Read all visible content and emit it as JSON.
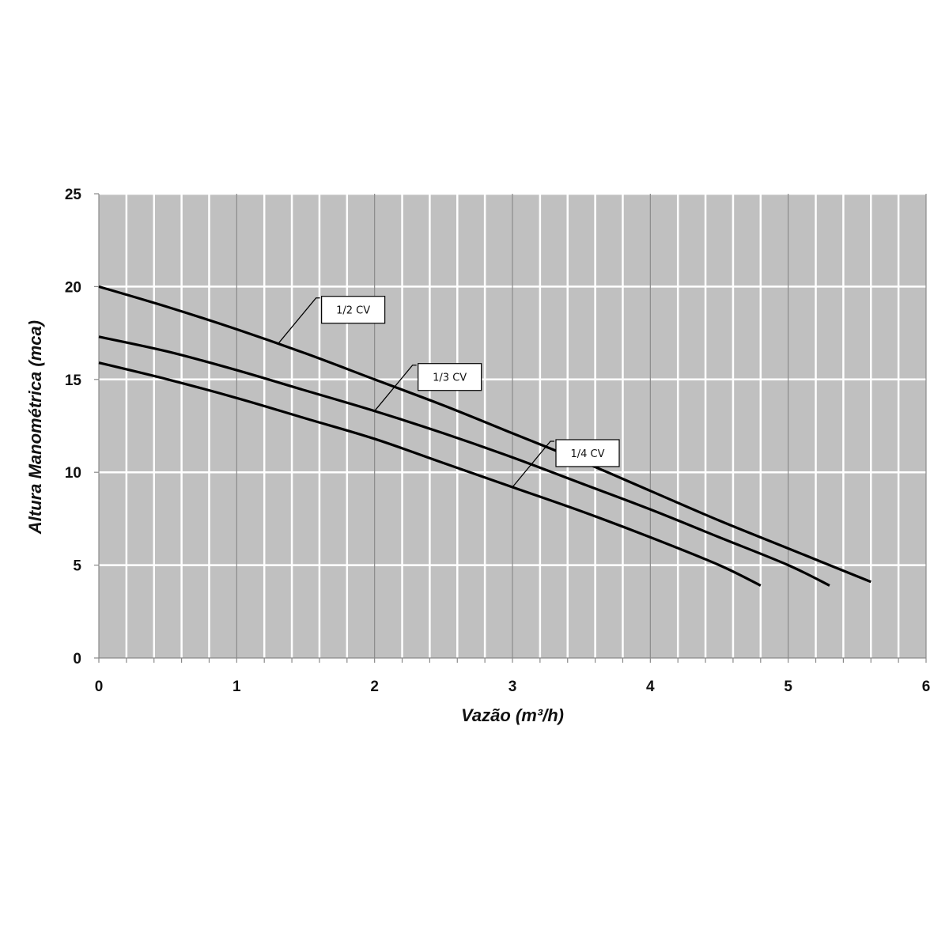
{
  "chart_data": {
    "type": "line",
    "title": "",
    "xlabel": "Vazão (m³/h)",
    "ylabel": "Altura Manométrica (mca)",
    "xlim": [
      0,
      6
    ],
    "ylim": [
      0,
      25
    ],
    "x_ticks": [
      0,
      1,
      2,
      3,
      4,
      5,
      6
    ],
    "y_ticks": [
      0,
      5,
      10,
      15,
      20,
      25
    ],
    "x_minor_step": 0.2,
    "grid": true,
    "legend": "none",
    "background_color": "#c0c0c0",
    "grid_color": "#ffffff",
    "major_grid_color": "#8a8a8a",
    "line_color": "#000000",
    "series": [
      {
        "name": "1/2 CV",
        "x": [
          0,
          0.5,
          1,
          1.5,
          2,
          2.5,
          3,
          3.5,
          4,
          4.5,
          5,
          5.6
        ],
        "y": [
          20.0,
          18.9,
          17.7,
          16.4,
          15.0,
          13.6,
          12.1,
          10.6,
          9.0,
          7.4,
          5.9,
          4.1
        ]
      },
      {
        "name": "1/3 CV",
        "x": [
          0,
          0.5,
          1,
          1.5,
          2,
          2.5,
          3,
          3.5,
          4,
          4.5,
          5,
          5.3
        ],
        "y": [
          17.3,
          16.5,
          15.5,
          14.4,
          13.3,
          12.1,
          10.8,
          9.4,
          8.0,
          6.5,
          5.0,
          3.9
        ]
      },
      {
        "name": "1/4 CV",
        "x": [
          0,
          0.5,
          1,
          1.5,
          2,
          2.5,
          3,
          3.5,
          4,
          4.5,
          4.8
        ],
        "y": [
          15.9,
          15.0,
          14.0,
          12.9,
          11.8,
          10.5,
          9.2,
          7.9,
          6.5,
          5.0,
          3.9
        ]
      }
    ],
    "annotations": [
      {
        "text": "1/2 CV",
        "series": "1/2 CV",
        "x": 1.3
      },
      {
        "text": "1/3 CV",
        "series": "1/3 CV",
        "x": 2.0
      },
      {
        "text": "1/4 CV",
        "series": "1/4 CV",
        "x": 3.0
      }
    ]
  }
}
